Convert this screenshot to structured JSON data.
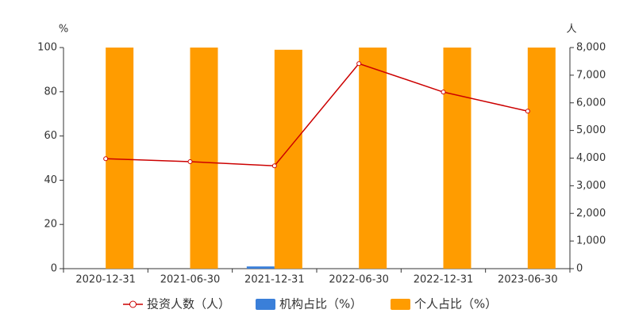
{
  "chart_data": {
    "type": "bar",
    "categories": [
      "2020-12-31",
      "2021-06-30",
      "2021-12-31",
      "2022-06-30",
      "2022-12-31",
      "2023-06-30"
    ],
    "y_label": "%",
    "y2_label": "人",
    "series": [
      {
        "name": "投资人数（人）",
        "type": "line",
        "axis": "y2",
        "color": "#cc0000",
        "values": [
          3980,
          3870,
          3720,
          7420,
          6390,
          5700
        ]
      },
      {
        "name": "机构占比（%）",
        "type": "bar",
        "color": "#3a7fd9",
        "values": [
          0,
          0,
          1,
          0,
          0,
          0
        ]
      },
      {
        "name": "个人占比（%）",
        "type": "bar",
        "color": "#ff9c00",
        "values": [
          100,
          100,
          99,
          100,
          100,
          100
        ]
      }
    ],
    "ylim": [
      0,
      100
    ],
    "yticks": [
      0,
      20,
      40,
      60,
      80,
      100
    ],
    "y2lim": [
      0,
      8000
    ],
    "y2ticks": [
      0,
      {
        "value": 1000,
        "label": "1,000"
      },
      {
        "value": 2000,
        "label": "2,000"
      },
      {
        "value": 3000,
        "label": "3,000"
      },
      {
        "value": 4000,
        "label": "4,000"
      },
      {
        "value": 5000,
        "label": "5,000"
      },
      {
        "value": 6000,
        "label": "6,000"
      },
      {
        "value": 7000,
        "label": "7,000"
      },
      {
        "value": 8000,
        "label": "8,000"
      }
    ],
    "grid": false
  }
}
